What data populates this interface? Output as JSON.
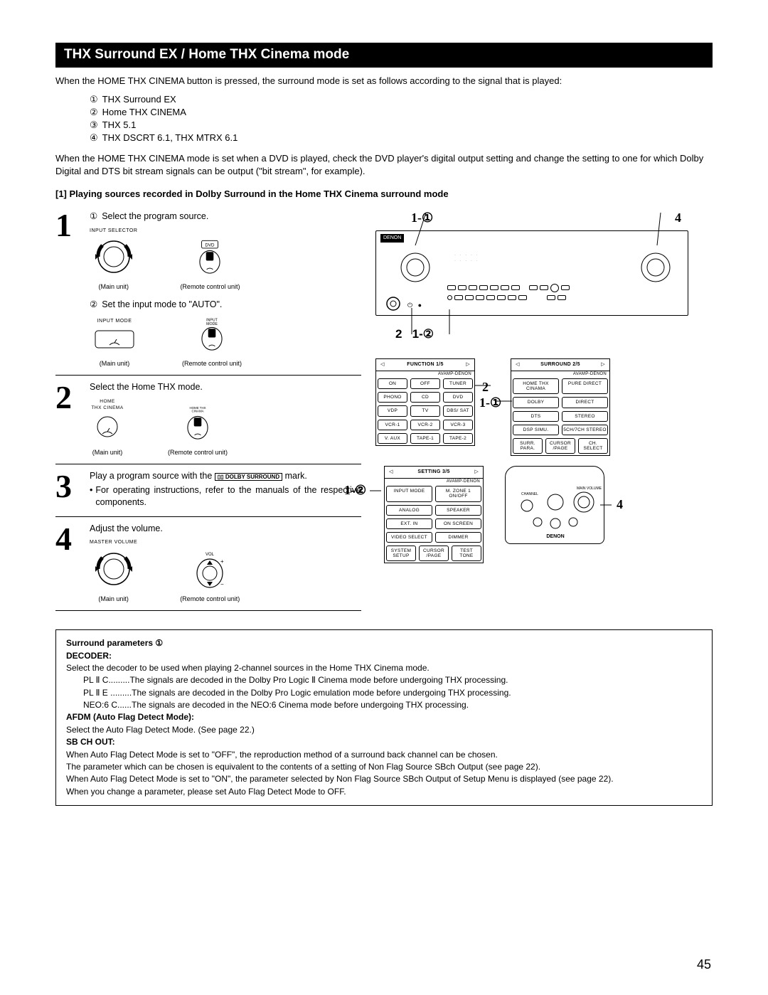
{
  "title": "THX Surround EX / Home THX Cinema mode",
  "intro": "When the HOME THX CINEMA button is pressed, the surround mode is set as follows according to the signal that is played:",
  "modes": [
    "THX Surround EX",
    "Home THX CINEMA",
    "THX 5.1",
    "THX DSCRT 6.1, THX MTRX 6.1"
  ],
  "circled_nums": [
    "①",
    "②",
    "③",
    "④"
  ],
  "note": "When the HOME THX CINEMA mode is set when a DVD is played, check the DVD player's digital output setting and change the setting to one for which Dolby Digital and DTS bit stream signals can be output (\"bit stream\", for example).",
  "section_head": "[1] Playing sources recorded in Dolby Surround in the Home THX Cinema surround mode",
  "steps": {
    "s1a": "Select the program source.",
    "s1a_label": "INPUT SELECTOR",
    "s1a_btn": "DVD",
    "s1b": "Set the input mode to \"AUTO\".",
    "s1b_label": "INPUT MODE",
    "s1b_btn": "INPUT MODE",
    "s2": "Select the Home THX mode.",
    "s2_label": "HOME THX CINEMA",
    "s2_btn": "HOME THX CINAMA",
    "s3a": "Play a program source with the ",
    "s3_mark": "DOLBY SURROUND",
    "s3b": " mark.",
    "s3c": "For operating instructions, refer to the manuals of the respective components.",
    "s4": "Adjust the volume.",
    "s4_label": "MASTER VOLUME",
    "s4_btn": "VOL",
    "main_unit": "(Main unit)",
    "remote_unit": "(Remote control unit)"
  },
  "callouts": {
    "c1": "1-①",
    "c2": "1-②",
    "c3": "2",
    "c4": "4",
    "c5": "1-①",
    "c6": "1-②"
  },
  "amp": {
    "brand": "DENON"
  },
  "rc1": {
    "head": "AVAMP-DENON",
    "title": "FUNCTION  1/5",
    "btns": [
      "ON",
      "OFF",
      "TUNER",
      "PHONO",
      "CD",
      "DVD",
      "VDP",
      "TV",
      "DBS/ SAT",
      "VCR-1",
      "VCR-2",
      "VCR-3",
      "V. AUX",
      "TAPE-1",
      "TAPE-2"
    ]
  },
  "rc2": {
    "head": "AVAMP-DENON",
    "title": "SURROUND 2/5",
    "btns": [
      "HOME THX CINAMA",
      "PURE DIRECT",
      "DOLBY",
      "DIRECT",
      "DTS",
      "STEREO",
      "DSP SIMU.",
      "5CH/7CH STEREO",
      "SURR. PARA.",
      "CURSOR /PAGE",
      "CH. SELECT"
    ]
  },
  "rc3": {
    "head": "AVAMP-DENON",
    "title": "SETTING   3/5",
    "btns": [
      "INPUT MODE",
      "M. ZONE 1 ON/OFF",
      "ANALOG",
      "SPEAKER",
      "EXT. IN",
      "ON SCREEN",
      "VIDEO SELECT",
      "DIMMER",
      "SYSTEM SETUP",
      "CURSOR /PAGE",
      "TEST TONE"
    ]
  },
  "remote_brand": "DENON",
  "params": {
    "h1": "Surround parameters ①",
    "h2": "DECODER:",
    "p1": "Select the decoder to be used when playing 2-channel sources in the Home THX Cinema mode.",
    "p2": "PL Ⅱ C.........The signals are decoded in the Dolby Pro Logic Ⅱ Cinema mode before undergoing THX processing.",
    "p3": "PL Ⅱ E .........The signals are decoded in the Dolby Pro Logic emulation mode before undergoing THX processing.",
    "p4": "NEO:6 C......The signals are decoded in the NEO:6 Cinema mode before undergoing THX processing.",
    "h3": "AFDM (Auto Flag Detect Mode):",
    "p5": "Select the Auto Flag Detect Mode. (See page 22.)",
    "h4": "SB CH OUT:",
    "p6": "When Auto Flag Detect Mode is set to \"OFF\", the reproduction method of a surround back channel can be chosen.",
    "p7": "The parameter which can be chosen is equivalent to the contents of a setting of Non Flag Source SBch Output (see page 22).",
    "p8": "When Auto Flag Detect Mode is set to \"ON\", the parameter selected by Non Flag Source SBch Output of Setup Menu is displayed (see page 22).",
    "p9": "When you change a parameter, please set Auto Flag Detect Mode to OFF."
  },
  "page_num": "45"
}
